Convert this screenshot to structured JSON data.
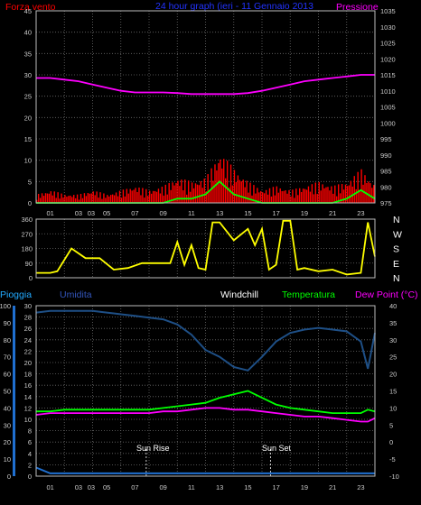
{
  "colors": {
    "background": "#000000",
    "wind": "#ff0000",
    "gust": "#00ff00",
    "pressure": "#ff00ff",
    "direction": "#ffff00",
    "rain": "#1f6fd0",
    "humidity": "#1e4f86",
    "temperature": "#00ff00",
    "dewpoint": "#ff00ff",
    "grid": "#6a6a6a",
    "title": "#2233ff",
    "rain_label": "#22aaff",
    "humidity_label": "#3355bb",
    "windchill_label": "#ffffff",
    "temp_label": "#00ff00",
    "dew_label": "#ff00ff"
  },
  "chart_data": [
    {
      "type": "bar",
      "title": "24 hour graph (ieri - 11 Gennaio 2013",
      "left_label": "Forza vento",
      "right_label": "Pressione",
      "x_ticks": [
        "01",
        "03",
        "03",
        "05",
        "07",
        "09",
        "11",
        "13",
        "15",
        "17",
        "19",
        "21",
        "23"
      ],
      "y_left_ticks": [
        "0",
        "5",
        "10",
        "15",
        "20",
        "25",
        "30",
        "35",
        "40",
        "45"
      ],
      "y_right_ticks": [
        "975",
        "980",
        "985",
        "990",
        "995",
        "1000",
        "1005",
        "1010",
        "1015",
        "1020",
        "1025",
        "1030",
        "1035"
      ],
      "ylim_left": [
        0,
        45
      ],
      "ylim_right": [
        975,
        1035
      ],
      "grid": true,
      "hours": [
        0,
        1,
        2,
        3,
        4,
        5,
        6,
        7,
        8,
        9,
        10,
        11,
        12,
        13,
        14,
        15,
        16,
        17,
        18,
        19,
        20,
        21,
        22,
        23,
        24
      ],
      "wind_speed": [
        2,
        3,
        2,
        2,
        3,
        2,
        3,
        4,
        3,
        4,
        6,
        5,
        6,
        12,
        8,
        5,
        3,
        4,
        3,
        4,
        5,
        4,
        5,
        8,
        4
      ],
      "wind_gust": [
        0,
        0,
        0,
        0,
        0,
        0,
        0,
        0,
        0,
        0,
        1,
        1,
        2,
        5,
        2,
        1,
        0,
        0,
        0,
        0,
        0,
        0,
        1,
        3,
        1
      ],
      "pressure": [
        1014,
        1014,
        1013.5,
        1013,
        1012,
        1011,
        1010,
        1009.5,
        1009.5,
        1009.5,
        1009.3,
        1009,
        1009,
        1009,
        1009,
        1009.3,
        1010,
        1011,
        1012,
        1013,
        1013.5,
        1014,
        1014.5,
        1015,
        1015
      ]
    },
    {
      "type": "line",
      "title": "",
      "left_label": "",
      "right_labels": [
        "N",
        "W",
        "S",
        "E",
        "N"
      ],
      "y_left_ticks": [
        "0",
        "90",
        "180",
        "270",
        "360"
      ],
      "ylim": [
        0,
        360
      ],
      "grid": true,
      "hours": [
        0,
        1,
        1.5,
        2.5,
        3.5,
        4.5,
        5.5,
        6.5,
        7.5,
        8.5,
        9.5,
        10,
        10.5,
        11,
        11.5,
        12,
        12.5,
        13,
        14,
        15,
        15.5,
        16,
        16.5,
        17,
        17.5,
        18,
        18.5,
        19,
        20,
        21,
        22,
        23,
        23.5,
        24
      ],
      "direction_deg": [
        30,
        30,
        40,
        180,
        120,
        120,
        50,
        60,
        90,
        90,
        90,
        220,
        80,
        200,
        60,
        50,
        340,
        340,
        230,
        300,
        200,
        300,
        50,
        80,
        350,
        350,
        50,
        60,
        40,
        50,
        20,
        30,
        340,
        130
      ]
    },
    {
      "type": "line",
      "labels": [
        "Pioggia",
        "Umidita",
        "Windchill",
        "Temperatura",
        "Dew Point (°C)"
      ],
      "x_ticks": [
        "01",
        "03",
        "03",
        "05",
        "07",
        "09",
        "11",
        "13",
        "15",
        "17",
        "19",
        "21",
        "23"
      ],
      "y_left_ticks": [
        "0",
        "10",
        "20",
        "30",
        "40",
        "50",
        "60",
        "70",
        "80",
        "90",
        "100"
      ],
      "y_left2_ticks": [
        "0",
        "2",
        "4",
        "6",
        "8",
        "10",
        "12",
        "14",
        "16",
        "18",
        "20",
        "22",
        "24",
        "26",
        "28",
        "30"
      ],
      "y_right_ticks": [
        "-10",
        "-5",
        "0",
        "5",
        "10",
        "15",
        "20",
        "25",
        "30",
        "35",
        "40"
      ],
      "ylim_humidity": [
        0,
        100
      ],
      "ylim_rain": [
        0,
        30
      ],
      "ylim_temp": [
        -10,
        40
      ],
      "grid": true,
      "annotations": [
        "Sun Rise",
        "Sun Set"
      ],
      "sunrise_hour": 7.8,
      "sunset_hour": 16.6,
      "hours": [
        0,
        1,
        2,
        3,
        4,
        5,
        6,
        7,
        8,
        9,
        10,
        11,
        12,
        13,
        14,
        15,
        16,
        17,
        18,
        19,
        20,
        21,
        22,
        23,
        23.5,
        24
      ],
      "humidity": [
        96,
        97,
        97,
        97,
        97,
        96,
        95,
        94,
        93,
        92,
        89,
        83,
        74,
        70,
        64,
        62,
        70,
        79,
        84,
        86,
        87,
        86,
        85,
        79,
        63,
        84
      ],
      "temperature": [
        9,
        9,
        9.5,
        9.5,
        9.5,
        9.5,
        9.5,
        9.5,
        9.5,
        10,
        10.5,
        11,
        11.5,
        13,
        14,
        15,
        13,
        11,
        10,
        9.5,
        9,
        8.5,
        8.5,
        8.5,
        9.5,
        9
      ],
      "dew_point": [
        8,
        8.5,
        8.5,
        8.5,
        8.5,
        8.5,
        8.5,
        8.5,
        8.5,
        9,
        9,
        9.5,
        10,
        10,
        9.5,
        9.5,
        9,
        8.5,
        8,
        7.5,
        7.5,
        7,
        6.5,
        6,
        6,
        7
      ],
      "rain": [
        1.5,
        0.5,
        0.5,
        0.5,
        0.5,
        0.5,
        0.5,
        0.5,
        0.5,
        0.5,
        0.5,
        0.5,
        0.5,
        0.5,
        0.5,
        0.5,
        0.5,
        0.5,
        0.5,
        0.5,
        0.5,
        0.5,
        0.5,
        0.5,
        0.5,
        0.5
      ]
    }
  ]
}
